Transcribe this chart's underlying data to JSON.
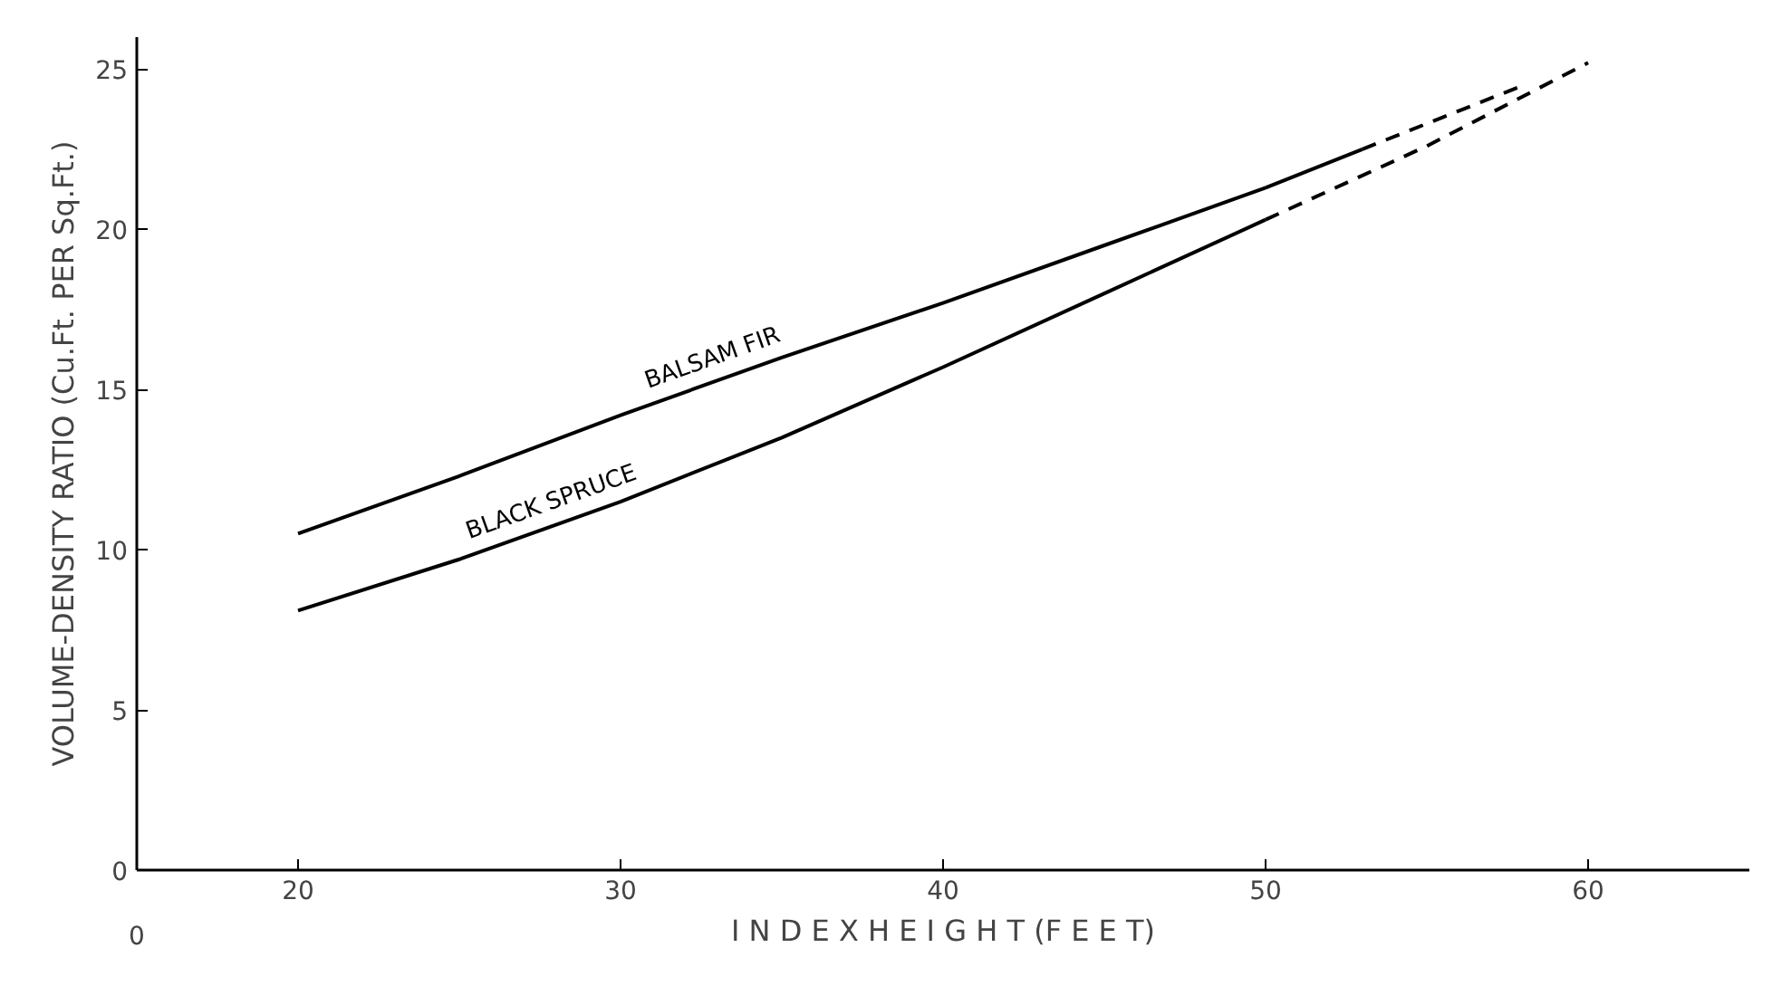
{
  "chart_data": {
    "type": "line",
    "xlabel": "I N D E X H E I G H T (F E E T)",
    "annotations": [
      "0"
    ],
    "ylabel": "VOLUME-DENSITY RATIO (Cu.Ft. PER Sq.Ft.)",
    "xlim": [
      15,
      65
    ],
    "xticks": [
      20,
      30,
      40,
      50,
      60
    ],
    "ylim": [
      0,
      26
    ],
    "yticks": [
      0,
      5,
      10,
      15,
      20,
      25
    ],
    "grid": false,
    "marker": "none",
    "series": [
      {
        "name": "BALSAM FIR",
        "color": "#000000",
        "line_style": "solid",
        "x": [
          20,
          25,
          30,
          35,
          40,
          45,
          50,
          53
        ],
        "values": [
          10.5,
          12.3,
          14.2,
          16.0,
          17.7,
          19.5,
          21.3,
          22.5
        ]
      },
      {
        "color": "#000000",
        "line_style": "dashed",
        "x": [
          53,
          56,
          58
        ],
        "values": [
          22.5,
          23.7,
          24.5
        ]
      },
      {
        "name": "BLACK SPRUCE",
        "color": "#000000",
        "line_style": "solid",
        "x": [
          20,
          25,
          30,
          35,
          40,
          45,
          50
        ],
        "values": [
          8.1,
          9.7,
          11.5,
          13.5,
          15.7,
          18.0,
          20.3
        ]
      },
      {
        "color": "#000000",
        "line_style": "dashed",
        "x": [
          50,
          55,
          60
        ],
        "values": [
          20.3,
          22.6,
          25.2
        ]
      }
    ]
  }
}
